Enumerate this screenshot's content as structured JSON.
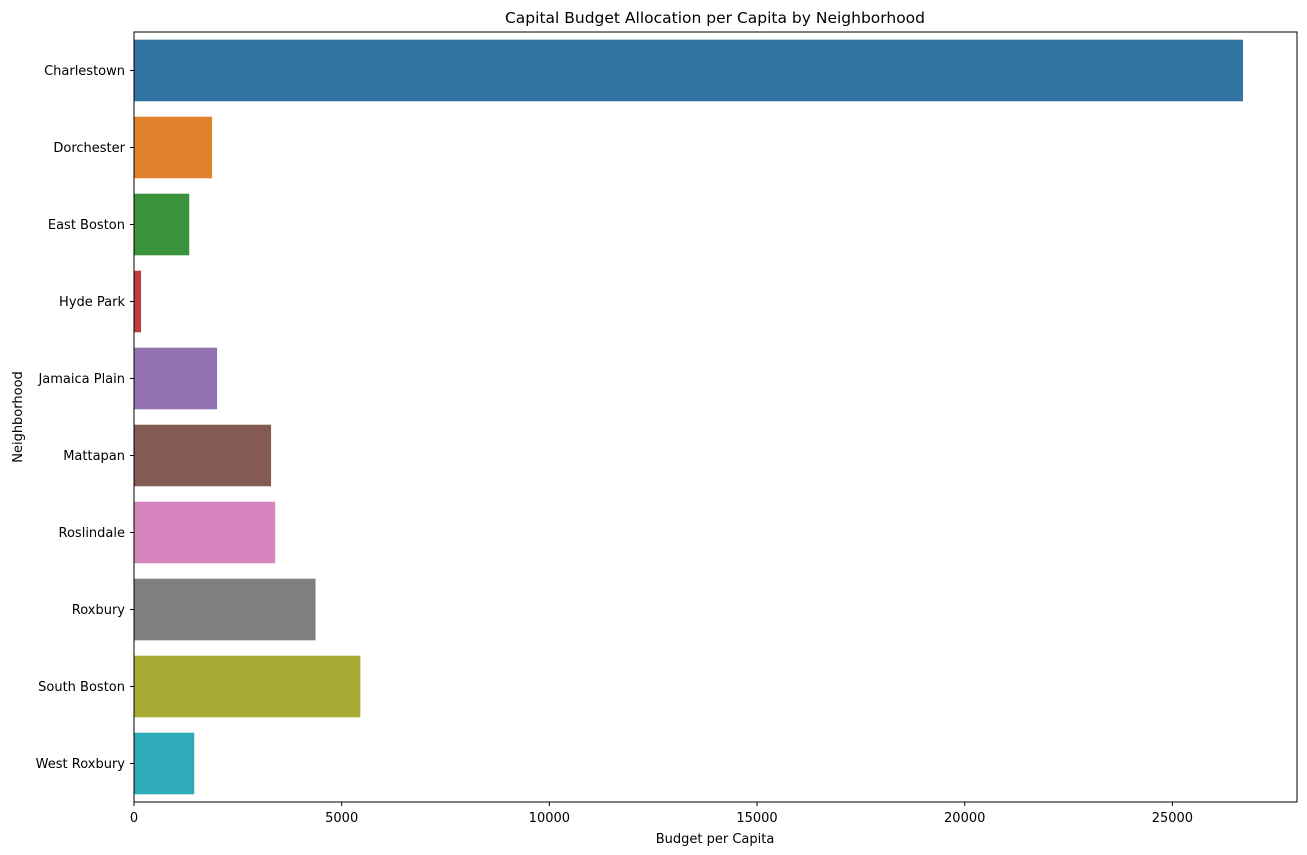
{
  "chart_data": {
    "type": "bar",
    "orientation": "horizontal",
    "title": "Capital Budget Allocation per Capita by Neighborhood",
    "xlabel": "Budget per Capita",
    "ylabel": "Neighborhood",
    "categories": [
      "Charlestown",
      "Dorchester",
      "East Boston",
      "Hyde Park",
      "Jamaica Plain",
      "Mattapan",
      "Roslindale",
      "Roxbury",
      "South Boston",
      "West Roxbury"
    ],
    "values": [
      26700,
      1880,
      1330,
      170,
      2000,
      3300,
      3400,
      4370,
      5450,
      1450
    ],
    "colors": [
      "#3274a1",
      "#e1812c",
      "#3a923a",
      "#c03d3e",
      "#9372b2",
      "#845b53",
      "#d684bd",
      "#7f7f7f",
      "#a9aa35",
      "#2eabb8"
    ],
    "xlim": [
      0,
      28000
    ],
    "xticks": [
      0,
      5000,
      10000,
      15000,
      20000,
      25000
    ],
    "grid": false,
    "legend": "none"
  }
}
